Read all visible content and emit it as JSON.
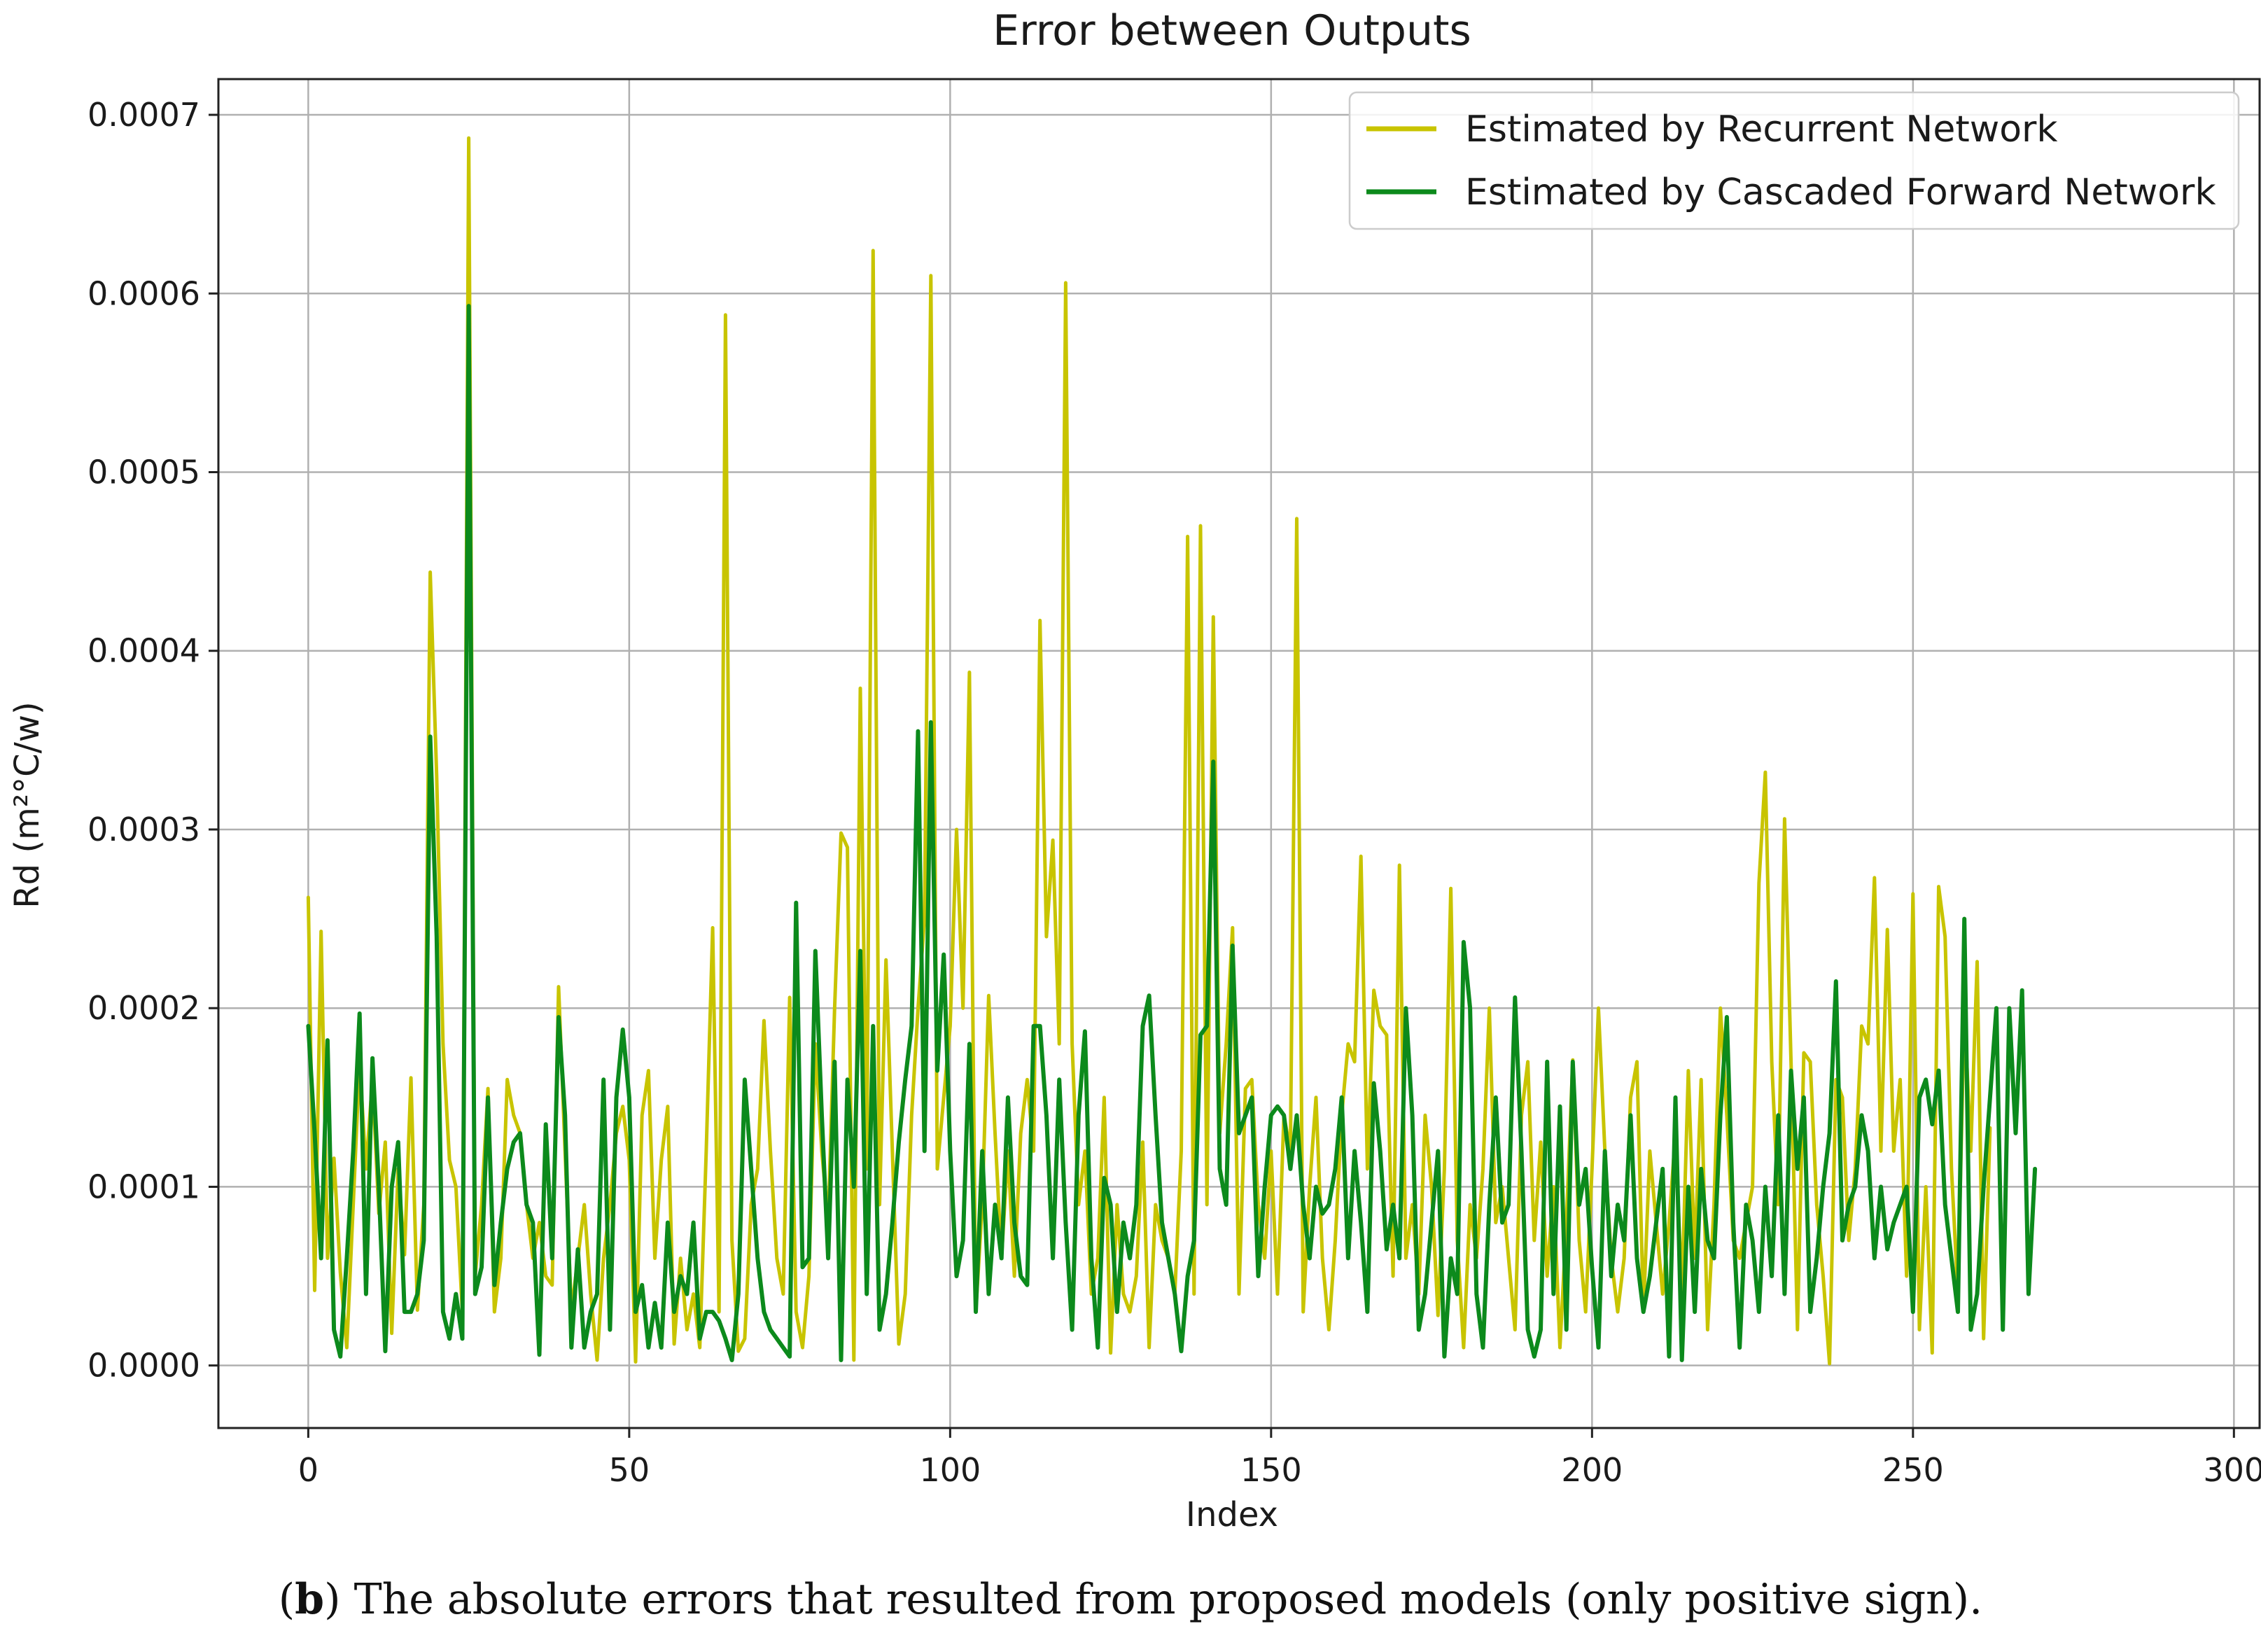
{
  "caption": {
    "letter": "b",
    "open": "(",
    "close": ")",
    "text": " The absolute errors that resulted from proposed models (only positive sign)."
  },
  "colors": {
    "recurrent": "#c8c400",
    "cascaded": "#0c8a1c",
    "grid": "#b0b0b0",
    "axis": "#222222"
  },
  "chart_data": {
    "type": "line",
    "title": "Error between Outputs",
    "xlabel": "Index",
    "ylabel": "Rd (m²°C/w)",
    "xlim": [
      -14,
      304
    ],
    "ylim": [
      -3.5e-05,
      0.00072
    ],
    "xticks": [
      0,
      50,
      100,
      150,
      200,
      250,
      300
    ],
    "xtick_labels": [
      "0",
      "50",
      "100",
      "150",
      "200",
      "250",
      "300"
    ],
    "yticks": [
      0,
      0.0001,
      0.0002,
      0.0003,
      0.0004,
      0.0005,
      0.0006,
      0.0007
    ],
    "ytick_labels": [
      "0.0000",
      "0.0001",
      "0.0002",
      "0.0003",
      "0.0004",
      "0.0005",
      "0.0006",
      "0.0007"
    ],
    "grid": true,
    "legend_position": "top-right",
    "x_start": 0,
    "x_step": 1,
    "series": [
      {
        "name": "Estimated by Recurrent Network",
        "color": "#c8c400",
        "values": [
          0.000262,
          4.2e-05,
          0.000243,
          6e-05,
          0.000116,
          5.2e-05,
          1e-05,
          9e-05,
          0.00017,
          0.00011,
          0.00016,
          8.5e-05,
          0.000125,
          1.8e-05,
          0.00011,
          6.2e-05,
          0.000161,
          3.1e-05,
          9e-05,
          0.000444,
          0.00033,
          0.00018,
          0.000115,
          0.0001,
          3e-05,
          0.000687,
          5e-05,
          9e-05,
          0.000155,
          3e-05,
          6e-05,
          0.00016,
          0.00014,
          0.00013,
          9e-05,
          6e-05,
          8e-05,
          5e-05,
          4.5e-05,
          0.000212,
          0.00012,
          3e-05,
          6e-05,
          9e-05,
          4e-05,
          3e-06,
          6e-05,
          9e-05,
          0.00013,
          0.000145,
          0.000115,
          2e-06,
          0.00014,
          0.000165,
          6e-05,
          0.000115,
          0.000145,
          1.2e-05,
          6e-05,
          2e-05,
          4e-05,
          1e-05,
          0.00012,
          0.000245,
          3e-05,
          0.000588,
          7e-05,
          8e-06,
          1.5e-05,
          9e-05,
          0.00011,
          0.000193,
          0.00012,
          6e-05,
          4e-05,
          0.000206,
          3e-05,
          1e-05,
          5e-05,
          0.00018,
          0.00012,
          8e-05,
          0.0002,
          0.000298,
          0.00029,
          3e-06,
          0.000379,
          0.00011,
          0.000624,
          9e-05,
          0.000227,
          0.00012,
          1.2e-05,
          4e-05,
          0.00014,
          0.0002,
          0.00025,
          0.00061,
          0.00011,
          0.00015,
          0.00019,
          0.0003,
          0.0002,
          0.000388,
          3e-05,
          9e-05,
          0.000207,
          0.00013,
          6e-05,
          0.00012,
          5e-05,
          0.00013,
          0.00016,
          0.00012,
          0.000417,
          0.00024,
          0.000294,
          0.00018,
          0.000606,
          0.00018,
          9e-05,
          0.00012,
          4e-05,
          6e-05,
          0.00015,
          7e-06,
          9e-05,
          4e-05,
          3e-05,
          5e-05,
          0.000125,
          1e-05,
          9e-05,
          7e-05,
          6e-05,
          4e-05,
          0.00012,
          0.000464,
          4e-05,
          0.00047,
          9e-05,
          0.000419,
          0.00013,
          0.00018,
          0.000245,
          4e-05,
          0.000155,
          0.00016,
          9e-05,
          6e-05,
          0.00012,
          4e-05,
          0.00014,
          0.00012,
          0.000474,
          3e-05,
          0.0001,
          0.00015,
          6e-05,
          2e-05,
          7e-05,
          0.00014,
          0.00018,
          0.00017,
          0.000285,
          0.00011,
          0.00021,
          0.00019,
          0.000185,
          5e-05,
          0.00028,
          6e-05,
          9e-05,
          4e-05,
          0.00014,
          0.0001,
          2.8e-05,
          0.00011,
          0.000267,
          7e-05,
          1e-05,
          9e-05,
          6e-05,
          0.00011,
          0.0002,
          8e-05,
          0.0001,
          6e-05,
          2e-05,
          0.00014,
          0.00017,
          7e-05,
          0.000125,
          5e-05,
          0.0001,
          1e-05,
          8e-05,
          0.000171,
          7e-05,
          3e-05,
          0.00011,
          0.0002,
          0.00012,
          6e-05,
          3e-05,
          6e-05,
          0.00015,
          0.00017,
          3e-05,
          0.00012,
          8e-05,
          4e-05,
          8e-05,
          0.00013,
          4e-05,
          0.000165,
          6e-05,
          0.00016,
          2e-05,
          9e-05,
          0.0002,
          0.00014,
          7e-05,
          6e-05,
          8e-05,
          0.0001,
          0.00027,
          0.000332,
          0.00017,
          9e-05,
          0.000306,
          0.00017,
          2e-05,
          0.000175,
          0.00017,
          9e-05,
          5e-05,
          1e-06,
          0.00016,
          0.00015,
          7e-05,
          0.00011,
          0.00019,
          0.00018,
          0.000273,
          0.00012,
          0.000244,
          0.00012,
          0.00016,
          5e-05,
          0.000264,
          2e-05,
          0.0001,
          7e-06,
          0.000268,
          0.00024,
          0.00011,
          4e-05,
          0.0002,
          0.00012,
          0.000226,
          1.5e-05,
          0.000133
        ]
      },
      {
        "name": "Estimated by Cascaded Forward Network",
        "color": "#0c8a1c",
        "values": [
          0.00019,
          0.00013,
          6e-05,
          0.000182,
          2e-05,
          5e-06,
          6e-05,
          0.00012,
          0.000197,
          4e-05,
          0.000172,
          0.0001,
          8e-06,
          0.0001,
          0.000125,
          3e-05,
          3e-05,
          4e-05,
          7e-05,
          0.000352,
          0.00024,
          3e-05,
          1.5e-05,
          4e-05,
          1.5e-05,
          0.000593,
          4e-05,
          5.5e-05,
          0.00015,
          4.5e-05,
          8e-05,
          0.00011,
          0.000125,
          0.00013,
          9e-05,
          8e-05,
          6e-06,
          0.000135,
          6e-05,
          0.000195,
          0.00014,
          1e-05,
          6.5e-05,
          1e-05,
          3e-05,
          4e-05,
          0.00016,
          2e-05,
          0.00015,
          0.000188,
          0.00015,
          3e-05,
          4.5e-05,
          1e-05,
          3.5e-05,
          1e-05,
          8e-05,
          3e-05,
          5e-05,
          4e-05,
          8e-05,
          1.5e-05,
          3e-05,
          3e-05,
          2.5e-05,
          1.5e-05,
          3e-06,
          4e-05,
          0.00016,
          0.00011,
          6e-05,
          3e-05,
          2e-05,
          1.5e-05,
          1e-05,
          5e-06,
          0.000259,
          5.5e-05,
          6e-05,
          0.000232,
          0.00014,
          6e-05,
          0.00017,
          3e-06,
          0.00016,
          0.0001,
          0.000232,
          4e-05,
          0.00019,
          2e-05,
          4e-05,
          8e-05,
          0.000125,
          0.00016,
          0.00019,
          0.000355,
          0.00012,
          0.00036,
          0.000165,
          0.00023,
          0.00012,
          5e-05,
          7e-05,
          0.00018,
          3e-05,
          0.00012,
          4e-05,
          9e-05,
          6e-05,
          0.00015,
          8e-05,
          5e-05,
          4.5e-05,
          0.00019,
          0.00019,
          0.00014,
          6e-05,
          0.00016,
          8e-05,
          2e-05,
          0.00014,
          0.000187,
          6e-05,
          1e-05,
          0.000105,
          9e-05,
          3e-05,
          8e-05,
          6e-05,
          9e-05,
          0.00019,
          0.000207,
          0.00014,
          8e-05,
          6e-05,
          4e-05,
          8e-06,
          5e-05,
          7e-05,
          0.000185,
          0.00019,
          0.000338,
          0.00011,
          9e-05,
          0.000235,
          0.00013,
          0.00014,
          0.00015,
          5e-05,
          0.0001,
          0.00014,
          0.000145,
          0.00014,
          0.00011,
          0.00014,
          9e-05,
          6e-05,
          0.0001,
          8.5e-05,
          9e-05,
          0.00011,
          0.00015,
          6e-05,
          0.00012,
          8e-05,
          3e-05,
          0.000158,
          0.00012,
          6.5e-05,
          9e-05,
          6e-05,
          0.0002,
          0.00014,
          2e-05,
          4e-05,
          8e-05,
          0.00012,
          5e-06,
          6e-05,
          4e-05,
          0.000237,
          0.0002,
          4e-05,
          1e-05,
          9e-05,
          0.00015,
          8e-05,
          9e-05,
          0.000206,
          0.00012,
          2e-05,
          5e-06,
          2e-05,
          0.00017,
          4e-05,
          0.000145,
          2e-05,
          0.00017,
          9e-05,
          0.00011,
          5.5e-05,
          1e-05,
          0.00012,
          5e-05,
          9e-05,
          7e-05,
          0.00014,
          6e-05,
          3e-05,
          5e-05,
          8e-05,
          0.00011,
          5e-06,
          0.00015,
          3e-06,
          0.0001,
          3e-05,
          0.00011,
          7e-05,
          6e-05,
          0.00014,
          0.000195,
          8e-05,
          1e-05,
          9e-05,
          7e-05,
          3e-05,
          0.0001,
          5e-05,
          0.00014,
          4e-05,
          0.000165,
          0.00011,
          0.00015,
          3e-05,
          6e-05,
          0.0001,
          0.00013,
          0.000215,
          7e-05,
          9e-05,
          0.0001,
          0.00014,
          0.00012,
          6e-05,
          0.0001,
          6.5e-05,
          8e-05,
          9e-05,
          0.0001,
          3e-05,
          0.00015,
          0.00016,
          0.000135,
          0.000165,
          9e-05,
          6e-05,
          3e-05,
          0.00025,
          2e-05,
          4e-05,
          0.0001,
          0.00015,
          0.0002,
          2e-05,
          0.0002,
          0.00013,
          0.00021,
          4e-05,
          0.00011
        ]
      }
    ]
  }
}
